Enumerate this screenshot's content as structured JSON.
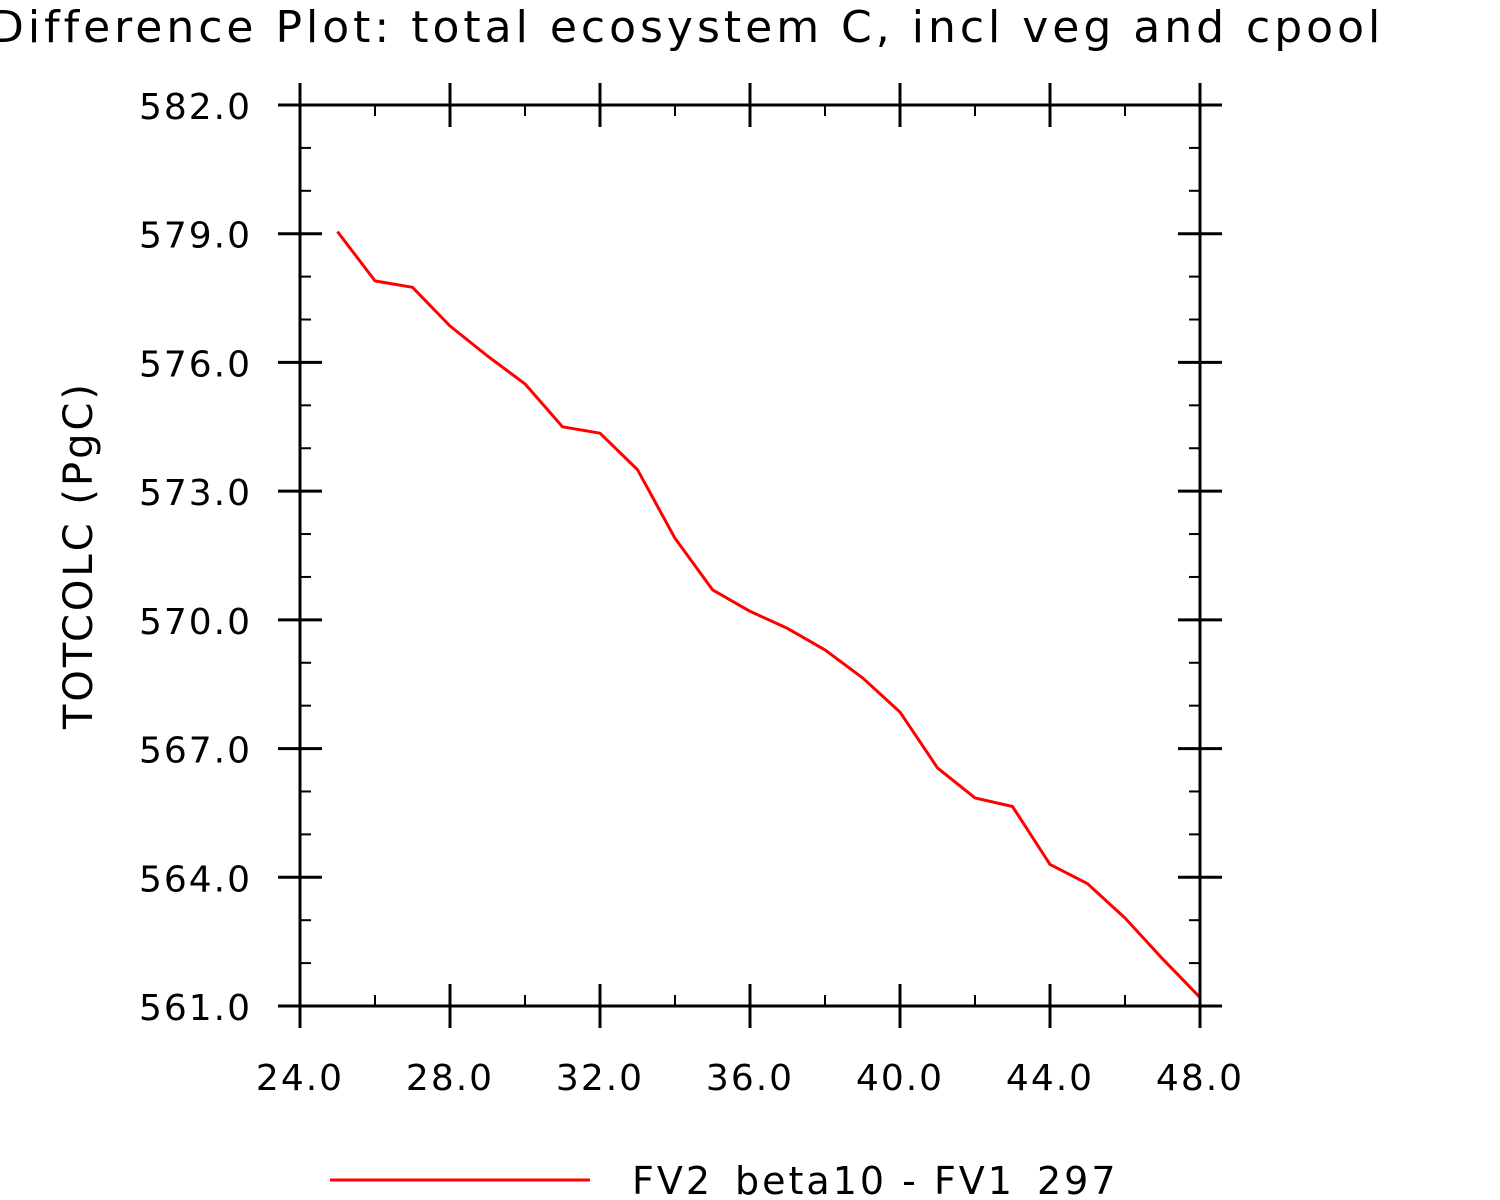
{
  "chart_data": {
    "type": "line",
    "title": "Difference Plot: total ecosystem C, incl veg and cpool",
    "xlabel": "",
    "ylabel": "TOTCOLC   (PgC)",
    "xlim": [
      24,
      48
    ],
    "ylim": [
      561,
      582
    ],
    "x_ticks": [
      24,
      28,
      32,
      36,
      40,
      44,
      48
    ],
    "x_tick_labels": [
      "24.0",
      "28.0",
      "32.0",
      "36.0",
      "40.0",
      "44.0",
      "48.0"
    ],
    "y_ticks": [
      561,
      564,
      567,
      570,
      573,
      576,
      579,
      582
    ],
    "y_tick_labels": [
      "561.0",
      "564.0",
      "567.0",
      "570.0",
      "573.0",
      "576.0",
      "579.0",
      "582.0"
    ],
    "x_minor_step": 2,
    "y_minor_step": 1,
    "grid": false,
    "legend_position": "bottom-center",
    "x": [
      25,
      26,
      27,
      28,
      29,
      30,
      31,
      32,
      33,
      34,
      35,
      36,
      37,
      38,
      39,
      40,
      41,
      42,
      43,
      44,
      45,
      46,
      47,
      48
    ],
    "series": [
      {
        "name": "FV2_beta10 - FV1_297",
        "color": "#ff0000",
        "values": [
          579.05,
          577.9,
          577.75,
          576.85,
          576.15,
          575.5,
          574.5,
          574.35,
          573.5,
          571.9,
          570.7,
          570.2,
          569.8,
          569.3,
          568.65,
          567.85,
          566.55,
          565.85,
          565.65,
          564.3,
          563.85,
          563.05,
          562.1,
          561.2
        ]
      }
    ]
  }
}
